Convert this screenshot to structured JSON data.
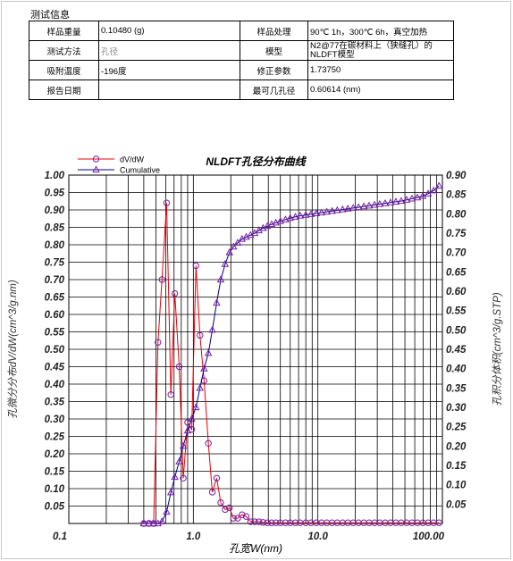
{
  "section_title": "测试信息",
  "info_table": {
    "rows": [
      [
        {
          "label": "样品重量",
          "value": "0.10480 (g)"
        },
        {
          "label": "样品处理",
          "value": "90℃ 1h，300℃ 6h，真空加热"
        }
      ],
      [
        {
          "label": "测试方法",
          "value": "孔径"
        },
        {
          "label": "模型",
          "value": "N2@77在碳材料上（狭缝孔）的NLDFT模型"
        }
      ],
      [
        {
          "label": "吸附温度",
          "value": "-196度"
        },
        {
          "label": "修正参数",
          "value": "1.73750"
        }
      ],
      [
        {
          "label": "报告日期",
          "value": ""
        },
        {
          "label": "最可几孔径",
          "value": "0.60614 (nm)"
        }
      ]
    ]
  },
  "chart_data": {
    "type": "line",
    "title": "NLDFT孔径分布曲线",
    "xlabel": "孔宽W(nm)",
    "ylabel_left": "孔微分分布dV/dW(cm^3/g.nm)",
    "ylabel_right": "孔积分体积(cm^3/g.STP)",
    "x_scale": "log",
    "xlim": [
      0.1,
      100
    ],
    "ylim_left": [
      0,
      1.0
    ],
    "ylim_right": [
      0,
      0.9
    ],
    "grid": true,
    "legend_position": "top-left",
    "x_ticks": [
      "0.1",
      "1.0",
      "10.0",
      "100.00"
    ],
    "y_ticks_left": [
      "1.00",
      "0.95",
      "0.90",
      "0.85",
      "0.80",
      "0.75",
      "0.70",
      "0.65",
      "0.60",
      "0.55",
      "0.50",
      "0.45",
      "0.40",
      "0.35",
      "0.30",
      "0.25",
      "0.20",
      "0.15",
      "0.10",
      "0.05"
    ],
    "y_ticks_right": [
      "0.90",
      "0.85",
      "0.80",
      "0.75",
      "0.70",
      "0.65",
      "0.60",
      "0.55",
      "0.50",
      "0.45",
      "0.40",
      "0.35",
      "0.30",
      "0.25",
      "0.20",
      "0.15",
      "0.10",
      "0.05"
    ],
    "series": [
      {
        "name": "dV/dW",
        "axis": "left",
        "color": "#e8000b",
        "marker": "circle",
        "marker_color": "#7a1fa2",
        "x": [
          0.4,
          0.44,
          0.48,
          0.52,
          0.56,
          0.61,
          0.66,
          0.71,
          0.77,
          0.83,
          0.9,
          0.97,
          1.05,
          1.13,
          1.22,
          1.32,
          1.42,
          1.54,
          1.66,
          1.8,
          1.95,
          2.1,
          2.27,
          2.46,
          2.66,
          2.88,
          3.11,
          3.36,
          3.63,
          3.93,
          4.25,
          4.6,
          5.0,
          5.5,
          6.0,
          6.6,
          7.2,
          8.0,
          8.8,
          9.7,
          10.7,
          11.8,
          13.0,
          14.3,
          15.8,
          17.4,
          19.2,
          21.2,
          23.4,
          25.8,
          28.5,
          31.4,
          34.7,
          38.3,
          42.3,
          46.7,
          51.6,
          57.0,
          63.0,
          69.6,
          76.9,
          85.0,
          94.0
        ],
        "y": [
          0.0,
          0.0,
          0.0,
          0.52,
          0.7,
          0.92,
          0.37,
          0.66,
          0.45,
          0.13,
          0.29,
          0.27,
          0.74,
          0.54,
          0.41,
          0.23,
          0.09,
          0.13,
          0.06,
          0.04,
          0.045,
          0.015,
          0.015,
          0.025,
          0.02,
          0.005,
          0.005,
          0.005,
          0.003,
          0.002,
          0.002,
          0.002,
          0.002,
          0.002,
          0.002,
          0.002,
          0.002,
          0.002,
          0.002,
          0.002,
          0.002,
          0.002,
          0.002,
          0.002,
          0.002,
          0.002,
          0.002,
          0.002,
          0.002,
          0.002,
          0.002,
          0.002,
          0.002,
          0.002,
          0.002,
          0.002,
          0.002,
          0.002,
          0.002,
          0.002,
          0.002,
          0.002,
          0.002
        ]
      },
      {
        "name": "Cumulative",
        "axis": "right",
        "color": "#00008b",
        "marker": "triangle",
        "marker_color": "#7a1fa2",
        "x": [
          0.4,
          0.44,
          0.48,
          0.52,
          0.56,
          0.61,
          0.66,
          0.71,
          0.77,
          0.83,
          0.9,
          0.97,
          1.05,
          1.13,
          1.22,
          1.32,
          1.42,
          1.54,
          1.66,
          1.8,
          1.95,
          2.1,
          2.27,
          2.46,
          2.66,
          2.88,
          3.11,
          3.36,
          3.63,
          3.93,
          4.25,
          4.6,
          5.0,
          5.5,
          6.0,
          6.6,
          7.2,
          8.0,
          8.8,
          9.7,
          10.7,
          11.8,
          13.0,
          14.3,
          15.8,
          17.4,
          19.2,
          21.2,
          23.4,
          25.8,
          28.5,
          31.4,
          34.7,
          38.3,
          42.3,
          46.7,
          51.6,
          57.0,
          63.0,
          69.6,
          76.9,
          85.0,
          94.0
        ],
        "y": [
          0.0,
          0.0,
          0.0,
          0.0,
          0.005,
          0.03,
          0.08,
          0.12,
          0.16,
          0.2,
          0.24,
          0.27,
          0.3,
          0.35,
          0.4,
          0.44,
          0.5,
          0.57,
          0.63,
          0.67,
          0.7,
          0.715,
          0.725,
          0.735,
          0.74,
          0.745,
          0.75,
          0.757,
          0.763,
          0.768,
          0.773,
          0.777,
          0.781,
          0.785,
          0.789,
          0.792,
          0.795,
          0.797,
          0.799,
          0.801,
          0.803,
          0.805,
          0.807,
          0.809,
          0.811,
          0.813,
          0.815,
          0.817,
          0.819,
          0.821,
          0.823,
          0.825,
          0.827,
          0.829,
          0.831,
          0.833,
          0.836,
          0.839,
          0.842,
          0.846,
          0.852,
          0.86,
          0.872
        ]
      }
    ]
  }
}
